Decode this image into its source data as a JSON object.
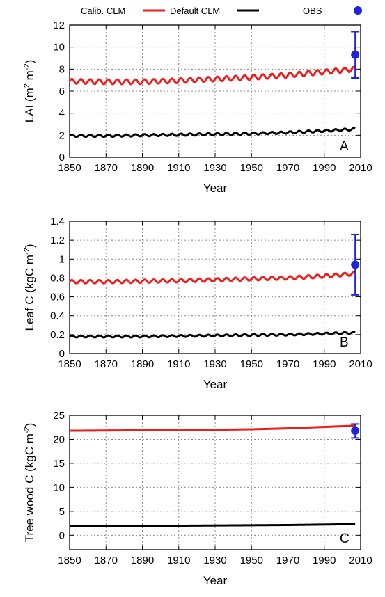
{
  "legend": {
    "calibrated": "Calib. CLM",
    "default": "Default CLM",
    "obs": "OBS"
  },
  "colors": {
    "calibrated": "#ee1c1c",
    "default": "#000000",
    "obs": "#1f25d6"
  },
  "chart_data": [
    {
      "type": "line",
      "panel_label": "A",
      "xlabel": "Year",
      "ylabel": "LAI (m2 m-2)",
      "ylabel_parts": [
        "LAI (m",
        "2",
        " m",
        "-2",
        ")"
      ],
      "xlim": [
        1850,
        2010
      ],
      "ylim": [
        0,
        12
      ],
      "xticks": [
        1850,
        1870,
        1890,
        1910,
        1930,
        1950,
        1970,
        1990,
        2010
      ],
      "yticks": [
        0,
        2,
        4,
        6,
        8,
        10,
        12
      ],
      "ytick_labels": [
        "0",
        "2",
        "4",
        "6",
        "8",
        "10",
        "12"
      ],
      "grid": true,
      "series": [
        {
          "name": "Calib. CLM",
          "color": "#ee1c1c",
          "x": [
            1850,
            1870,
            1890,
            1910,
            1930,
            1950,
            1970,
            1990,
            2007
          ],
          "y": [
            6.9,
            6.85,
            6.85,
            6.95,
            7.1,
            7.25,
            7.45,
            7.75,
            8.0
          ],
          "cycle_amplitude": 0.22,
          "cycle_period": 5
        },
        {
          "name": "Default CLM",
          "color": "#000000",
          "x": [
            1850,
            1870,
            1890,
            1910,
            1930,
            1950,
            1970,
            1990,
            2007
          ],
          "y": [
            1.95,
            1.95,
            2.0,
            2.05,
            2.1,
            2.15,
            2.25,
            2.4,
            2.55
          ],
          "cycle_amplitude": 0.1,
          "cycle_period": 5
        }
      ],
      "obs": {
        "x": 2007,
        "y": 9.3,
        "err_low": 7.2,
        "err_high": 11.4
      }
    },
    {
      "type": "line",
      "panel_label": "B",
      "xlabel": "Year",
      "ylabel": "Leaf C (kgC m-2)",
      "ylabel_parts": [
        "Leaf C (kgC m",
        "-2",
        ")"
      ],
      "xlim": [
        1850,
        2010
      ],
      "ylim": [
        0,
        1.4
      ],
      "xticks": [
        1850,
        1870,
        1890,
        1910,
        1930,
        1950,
        1970,
        1990,
        2010
      ],
      "yticks": [
        0,
        0.2,
        0.4,
        0.6,
        0.8,
        1,
        1.2,
        1.4
      ],
      "ytick_labels": [
        "0",
        "0.2",
        "0.4",
        "0.6",
        "0.8",
        "1",
        "1.2",
        "1.4"
      ],
      "grid": true,
      "series": [
        {
          "name": "Calib. CLM",
          "color": "#ee1c1c",
          "x": [
            1850,
            1870,
            1890,
            1910,
            1930,
            1950,
            1970,
            1990,
            2007
          ],
          "y": [
            0.76,
            0.76,
            0.765,
            0.77,
            0.78,
            0.79,
            0.8,
            0.82,
            0.845
          ],
          "cycle_amplitude": 0.018,
          "cycle_period": 5
        },
        {
          "name": "Default CLM",
          "color": "#000000",
          "x": [
            1850,
            1870,
            1890,
            1910,
            1930,
            1950,
            1970,
            1990,
            2007
          ],
          "y": [
            0.18,
            0.18,
            0.18,
            0.185,
            0.19,
            0.195,
            0.2,
            0.21,
            0.22
          ],
          "cycle_amplitude": 0.01,
          "cycle_period": 5
        }
      ],
      "obs": {
        "x": 2007,
        "y": 0.94,
        "err_low": 0.62,
        "err_high": 1.26
      }
    },
    {
      "type": "line",
      "panel_label": "C",
      "xlabel": "Year",
      "ylabel": "Tree wood C (kgC m-2)",
      "ylabel_parts": [
        "Tree wood C (kgC m",
        "-2",
        ")"
      ],
      "xlim": [
        1850,
        2010
      ],
      "ylim": [
        -3,
        25
      ],
      "xticks": [
        1850,
        1870,
        1890,
        1910,
        1930,
        1950,
        1970,
        1990,
        2010
      ],
      "yticks": [
        0,
        5,
        10,
        15,
        20,
        25
      ],
      "ytick_labels": [
        "0",
        "5",
        "10",
        "15",
        "20",
        "25"
      ],
      "grid": true,
      "series": [
        {
          "name": "Calib. CLM",
          "color": "#ee1c1c",
          "x": [
            1850,
            1870,
            1890,
            1910,
            1930,
            1950,
            1970,
            1990,
            2007
          ],
          "y": [
            21.8,
            21.85,
            21.9,
            21.95,
            22.0,
            22.1,
            22.3,
            22.6,
            22.85
          ],
          "cycle_amplitude": 0,
          "cycle_period": 5
        },
        {
          "name": "Default CLM",
          "color": "#000000",
          "x": [
            1850,
            1870,
            1890,
            1910,
            1930,
            1950,
            1970,
            1990,
            2007
          ],
          "y": [
            1.9,
            1.9,
            1.95,
            2.0,
            2.05,
            2.1,
            2.15,
            2.25,
            2.35
          ],
          "cycle_amplitude": 0,
          "cycle_period": 5
        }
      ],
      "obs": {
        "x": 2007,
        "y": 21.8,
        "err_low": 20.3,
        "err_high": 23.2
      }
    }
  ]
}
